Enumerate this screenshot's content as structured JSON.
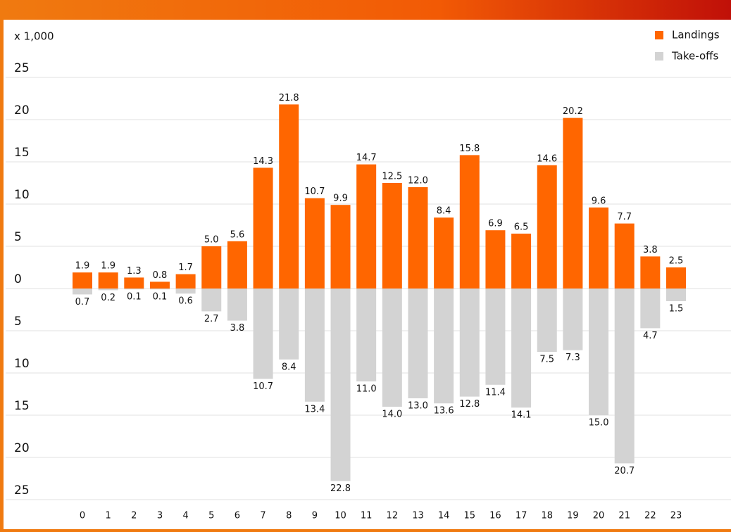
{
  "chart_data": {
    "type": "diverging-bar",
    "unit_label": "x 1,000",
    "categories": [
      "0",
      "1",
      "2",
      "3",
      "4",
      "5",
      "6",
      "7",
      "8",
      "9",
      "10",
      "11",
      "12",
      "13",
      "14",
      "15",
      "16",
      "17",
      "18",
      "19",
      "20",
      "21",
      "22",
      "23"
    ],
    "series": [
      {
        "name": "Landings",
        "color": "#ff6600",
        "values": [
          1.9,
          1.9,
          1.3,
          0.8,
          1.7,
          5.0,
          5.6,
          14.3,
          21.8,
          10.7,
          9.9,
          14.7,
          12.5,
          12.0,
          8.4,
          15.8,
          6.9,
          6.5,
          14.6,
          20.2,
          9.6,
          7.7,
          3.8,
          2.5
        ],
        "value_labels": [
          "1.9",
          "1.9",
          "1.3",
          "0.8",
          "1.7",
          "5.0",
          "5.6",
          "14.3",
          "21.8",
          "10.7",
          "9.9",
          "14.7",
          "12.5",
          "12.0",
          "8.4",
          "15.8",
          "6.9",
          "6.5",
          "14.6",
          "20.2",
          "9.6",
          "7.7",
          "3.8",
          "2.5"
        ]
      },
      {
        "name": "Take-offs",
        "color": "#d3d3d3",
        "values": [
          -0.7,
          -0.2,
          -0.1,
          -0.1,
          -0.6,
          -2.7,
          -3.8,
          -10.7,
          -8.4,
          -13.4,
          -22.8,
          -11.0,
          -14.0,
          -13.0,
          -13.6,
          -12.8,
          -11.4,
          -14.1,
          -7.5,
          -7.3,
          -15.0,
          -20.7,
          -4.7,
          -1.5
        ],
        "value_labels": [
          "0.7",
          "0.2",
          "0.1",
          "0.1",
          "0.6",
          "2.7",
          "3.8",
          "10.7",
          "8.4",
          "13.4",
          "22.8",
          "11.0",
          "14.0",
          "13.0",
          "13.6",
          "12.8",
          "11.4",
          "14.1",
          "7.5",
          "7.3",
          "15.0",
          "20.7",
          "4.7",
          "1.5"
        ]
      }
    ],
    "ylim": [
      -25,
      25
    ],
    "yticks": [
      25,
      20,
      15,
      10,
      5,
      0,
      {
        "value": -5,
        "label": "5"
      },
      {
        "value": -10,
        "label": "10"
      },
      {
        "value": -15,
        "label": "15"
      },
      {
        "value": -20,
        "label": "20"
      },
      {
        "value": -25,
        "label": "25"
      }
    ],
    "grid": true,
    "legend": "top-right"
  }
}
